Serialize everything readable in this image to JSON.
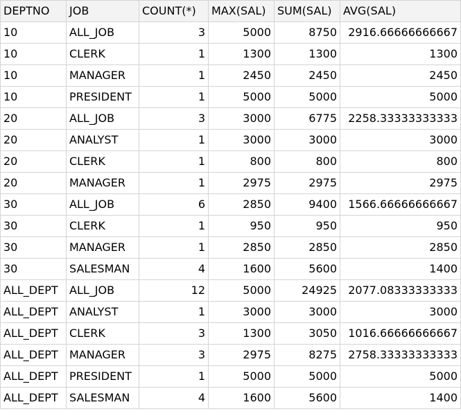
{
  "grid": {
    "columns": [
      "DEPTNO",
      "JOB",
      "COUNT(*)",
      "MAX(SAL)",
      "SUM(SAL)",
      "AVG(SAL)"
    ],
    "rows": [
      [
        "10",
        "ALL_JOB",
        "3",
        "5000",
        "8750",
        "2916.66666666667"
      ],
      [
        "10",
        "CLERK",
        "1",
        "1300",
        "1300",
        "1300"
      ],
      [
        "10",
        "MANAGER",
        "1",
        "2450",
        "2450",
        "2450"
      ],
      [
        "10",
        "PRESIDENT",
        "1",
        "5000",
        "5000",
        "5000"
      ],
      [
        "20",
        "ALL_JOB",
        "3",
        "3000",
        "6775",
        "2258.33333333333"
      ],
      [
        "20",
        "ANALYST",
        "1",
        "3000",
        "3000",
        "3000"
      ],
      [
        "20",
        "CLERK",
        "1",
        "800",
        "800",
        "800"
      ],
      [
        "20",
        "MANAGER",
        "1",
        "2975",
        "2975",
        "2975"
      ],
      [
        "30",
        "ALL_JOB",
        "6",
        "2850",
        "9400",
        "1566.66666666667"
      ],
      [
        "30",
        "CLERK",
        "1",
        "950",
        "950",
        "950"
      ],
      [
        "30",
        "MANAGER",
        "1",
        "2850",
        "2850",
        "2850"
      ],
      [
        "30",
        "SALESMAN",
        "4",
        "1600",
        "5600",
        "1400"
      ],
      [
        "ALL_DEPT",
        "ALL_JOB",
        "12",
        "5000",
        "24925",
        "2077.08333333333"
      ],
      [
        "ALL_DEPT",
        "ANALYST",
        "1",
        "3000",
        "3000",
        "3000"
      ],
      [
        "ALL_DEPT",
        "CLERK",
        "3",
        "1300",
        "3050",
        "1016.66666666667"
      ],
      [
        "ALL_DEPT",
        "MANAGER",
        "3",
        "2975",
        "8275",
        "2758.33333333333"
      ],
      [
        "ALL_DEPT",
        "PRESIDENT",
        "1",
        "5000",
        "5000",
        "5000"
      ],
      [
        "ALL_DEPT",
        "SALESMAN",
        "4",
        "1600",
        "5600",
        "1400"
      ]
    ]
  }
}
